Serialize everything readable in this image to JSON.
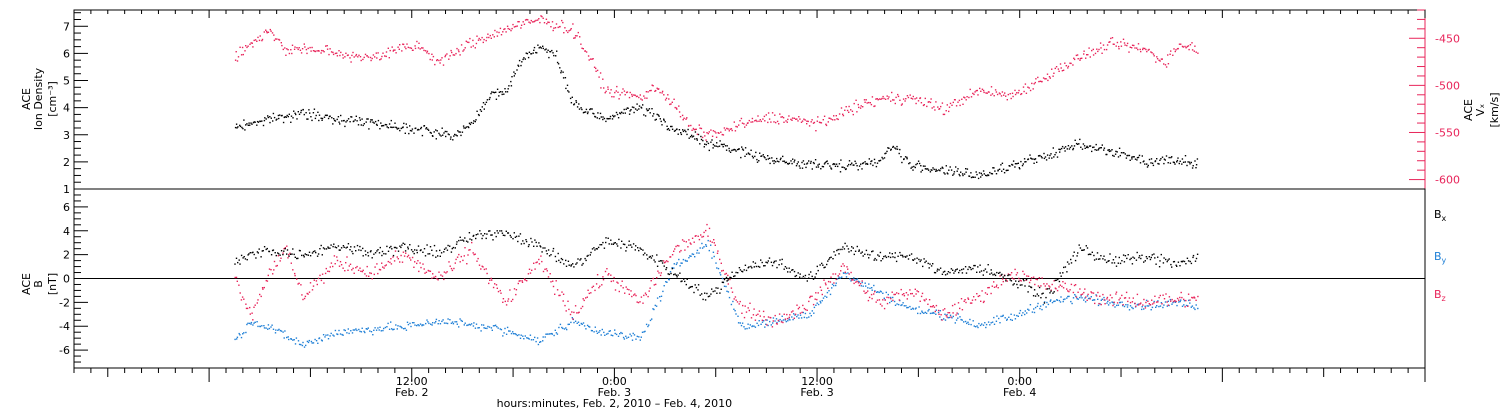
{
  "chart_data": [
    {
      "type": "scatter",
      "panel": "top",
      "ylabel": {
        "line1": "ACE",
        "line2": "Ion Density",
        "unit": "[cm⁻³]"
      },
      "ylim": [
        1,
        7.6
      ],
      "y_ticks": [
        1,
        2,
        3,
        4,
        5,
        6,
        7
      ],
      "y2label": {
        "line1": "ACE",
        "line2": "Vₓ",
        "unit": "[km/s]"
      },
      "y2lim": [
        -610,
        -420
      ],
      "y2_ticks": [
        -600,
        -550,
        -500,
        -450
      ],
      "series": [
        {
          "axis": "left",
          "color": "#000000",
          "points": [
            [
              0,
              3.3
            ],
            [
              2,
              3.6
            ],
            [
              4,
              3.8
            ],
            [
              6,
              3.6
            ],
            [
              8,
              3.5
            ],
            [
              10,
              3.3
            ],
            [
              12,
              3.1
            ],
            [
              13,
              3.0
            ],
            [
              14,
              3.4
            ],
            [
              15,
              4.4
            ],
            [
              16,
              4.6
            ],
            [
              17,
              5.8
            ],
            [
              18,
              6.3
            ],
            [
              19,
              5.9
            ],
            [
              20,
              4.2
            ],
            [
              21,
              3.8
            ],
            [
              22,
              3.6
            ],
            [
              23,
              3.9
            ],
            [
              24,
              4.0
            ],
            [
              25,
              3.7
            ],
            [
              26,
              3.2
            ],
            [
              27,
              3.0
            ],
            [
              28,
              2.7
            ],
            [
              30,
              2.4
            ],
            [
              32,
              2.1
            ],
            [
              34,
              1.9
            ],
            [
              36,
              1.9
            ],
            [
              38,
              2.0
            ],
            [
              39,
              2.6
            ],
            [
              40,
              1.9
            ],
            [
              42,
              1.7
            ],
            [
              44,
              1.5
            ],
            [
              46,
              1.9
            ],
            [
              48,
              2.2
            ],
            [
              50,
              2.7
            ],
            [
              52,
              2.4
            ],
            [
              54,
              2.0
            ],
            [
              55,
              2.1
            ],
            [
              56,
              2.1
            ],
            [
              57,
              2.0
            ]
          ]
        },
        {
          "axis": "right",
          "color": "#e8245a",
          "points": [
            [
              0,
              -470
            ],
            [
              1,
              -455
            ],
            [
              2,
              -440
            ],
            [
              3,
              -462
            ],
            [
              4,
              -460
            ],
            [
              6,
              -465
            ],
            [
              8,
              -470
            ],
            [
              10,
              -460
            ],
            [
              11,
              -458
            ],
            [
              12,
              -475
            ],
            [
              14,
              -455
            ],
            [
              16,
              -440
            ],
            [
              18,
              -430
            ],
            [
              20,
              -440
            ],
            [
              21,
              -470
            ],
            [
              22,
              -505
            ],
            [
              24,
              -512
            ],
            [
              25,
              -500
            ],
            [
              26,
              -520
            ],
            [
              27,
              -545
            ],
            [
              28,
              -552
            ],
            [
              29,
              -548
            ],
            [
              30,
              -540
            ],
            [
              32,
              -533
            ],
            [
              34,
              -538
            ],
            [
              35,
              -540
            ],
            [
              36,
              -527
            ],
            [
              38,
              -515
            ],
            [
              40,
              -512
            ],
            [
              42,
              -525
            ],
            [
              44,
              -505
            ],
            [
              46,
              -510
            ],
            [
              48,
              -490
            ],
            [
              50,
              -470
            ],
            [
              52,
              -455
            ],
            [
              54,
              -462
            ],
            [
              55,
              -475
            ],
            [
              56,
              -455
            ],
            [
              57,
              -460
            ]
          ]
        }
      ]
    },
    {
      "type": "scatter",
      "panel": "bottom",
      "ylabel": {
        "line1": "ACE",
        "line2": "B",
        "unit": "[nT]"
      },
      "ylim": [
        -7.5,
        7.5
      ],
      "y_ticks": [
        -6,
        -4,
        -2,
        0,
        2,
        4,
        6
      ],
      "zero_line": true,
      "series": [
        {
          "name": "Bx",
          "color": "#000000",
          "points": [
            [
              0,
              1.5
            ],
            [
              2,
              2.5
            ],
            [
              4,
              2.0
            ],
            [
              6,
              2.8
            ],
            [
              8,
              2.3
            ],
            [
              10,
              2.6
            ],
            [
              12,
              2.2
            ],
            [
              14,
              3.5
            ],
            [
              16,
              4.0
            ],
            [
              18,
              2.8
            ],
            [
              20,
              1.0
            ],
            [
              22,
              3.2
            ],
            [
              24,
              2.5
            ],
            [
              26,
              0.5
            ],
            [
              28,
              -1.5
            ],
            [
              30,
              1.0
            ],
            [
              32,
              1.5
            ],
            [
              34,
              0.0
            ],
            [
              36,
              2.8
            ],
            [
              38,
              1.8
            ],
            [
              40,
              2.0
            ],
            [
              42,
              0.5
            ],
            [
              44,
              1.0
            ],
            [
              46,
              0.0
            ],
            [
              48,
              -1.5
            ],
            [
              50,
              2.5
            ],
            [
              52,
              1.5
            ],
            [
              54,
              1.8
            ],
            [
              56,
              1.2
            ],
            [
              57,
              1.8
            ]
          ]
        },
        {
          "name": "By",
          "color": "#1e7fd6",
          "points": [
            [
              0,
              -5.2
            ],
            [
              1,
              -3.5
            ],
            [
              2,
              -4.0
            ],
            [
              4,
              -5.5
            ],
            [
              6,
              -4.5
            ],
            [
              8,
              -4.2
            ],
            [
              10,
              -4.0
            ],
            [
              12,
              -3.5
            ],
            [
              14,
              -3.8
            ],
            [
              16,
              -4.3
            ],
            [
              18,
              -5.2
            ],
            [
              20,
              -3.5
            ],
            [
              22,
              -4.5
            ],
            [
              24,
              -5.0
            ],
            [
              26,
              1.0
            ],
            [
              28,
              3.0
            ],
            [
              30,
              -4.0
            ],
            [
              32,
              -3.5
            ],
            [
              34,
              -3.0
            ],
            [
              36,
              0.5
            ],
            [
              38,
              -1.0
            ],
            [
              40,
              -2.5
            ],
            [
              42,
              -3.0
            ],
            [
              44,
              -3.8
            ],
            [
              46,
              -3.2
            ],
            [
              48,
              -2.0
            ],
            [
              50,
              -1.5
            ],
            [
              52,
              -2.0
            ],
            [
              54,
              -2.2
            ],
            [
              56,
              -2.0
            ],
            [
              57,
              -2.2
            ]
          ]
        },
        {
          "name": "Bz",
          "color": "#e8245a",
          "points": [
            [
              0,
              0.0
            ],
            [
              1,
              -3.0
            ],
            [
              2,
              0.5
            ],
            [
              3,
              2.5
            ],
            [
              4,
              -1.5
            ],
            [
              6,
              1.5
            ],
            [
              8,
              0.5
            ],
            [
              10,
              2.0
            ],
            [
              12,
              0.0
            ],
            [
              14,
              2.5
            ],
            [
              16,
              -2.0
            ],
            [
              18,
              1.5
            ],
            [
              20,
              -3.0
            ],
            [
              22,
              0.5
            ],
            [
              24,
              -2.0
            ],
            [
              26,
              2.5
            ],
            [
              28,
              4.0
            ],
            [
              30,
              -2.5
            ],
            [
              32,
              -3.5
            ],
            [
              34,
              -2.0
            ],
            [
              36,
              1.0
            ],
            [
              38,
              -2.0
            ],
            [
              40,
              -1.0
            ],
            [
              42,
              -3.0
            ],
            [
              44,
              -1.5
            ],
            [
              46,
              0.5
            ],
            [
              48,
              -0.5
            ],
            [
              50,
              -1.0
            ],
            [
              52,
              -1.8
            ],
            [
              54,
              -1.8
            ],
            [
              56,
              -1.6
            ],
            [
              57,
              -1.8
            ]
          ]
        }
      ],
      "legend": [
        {
          "label": "B",
          "sub": "x",
          "color": "#000000"
        },
        {
          "label": "B",
          "sub": "y",
          "color": "#1e7fd6"
        },
        {
          "label": "B",
          "sub": "z",
          "color": "#e8245a"
        }
      ]
    }
  ],
  "time_axis": {
    "span_hours": [
      -8,
      72
    ],
    "data_span_hours": [
      1.5,
      58.5
    ],
    "major_ticks": [
      {
        "hour": 12,
        "line1": "12:00",
        "line2": "Feb. 2"
      },
      {
        "hour": 24,
        "line1": "0:00",
        "line2": "Feb. 3"
      },
      {
        "hour": 36,
        "line1": "12:00",
        "line2": "Feb. 3"
      },
      {
        "hour": 48,
        "line1": "0:00",
        "line2": "Feb. 4"
      }
    ],
    "xlabel": "hours:minutes, Feb.  2, 2010 – Feb.  4, 2010"
  }
}
